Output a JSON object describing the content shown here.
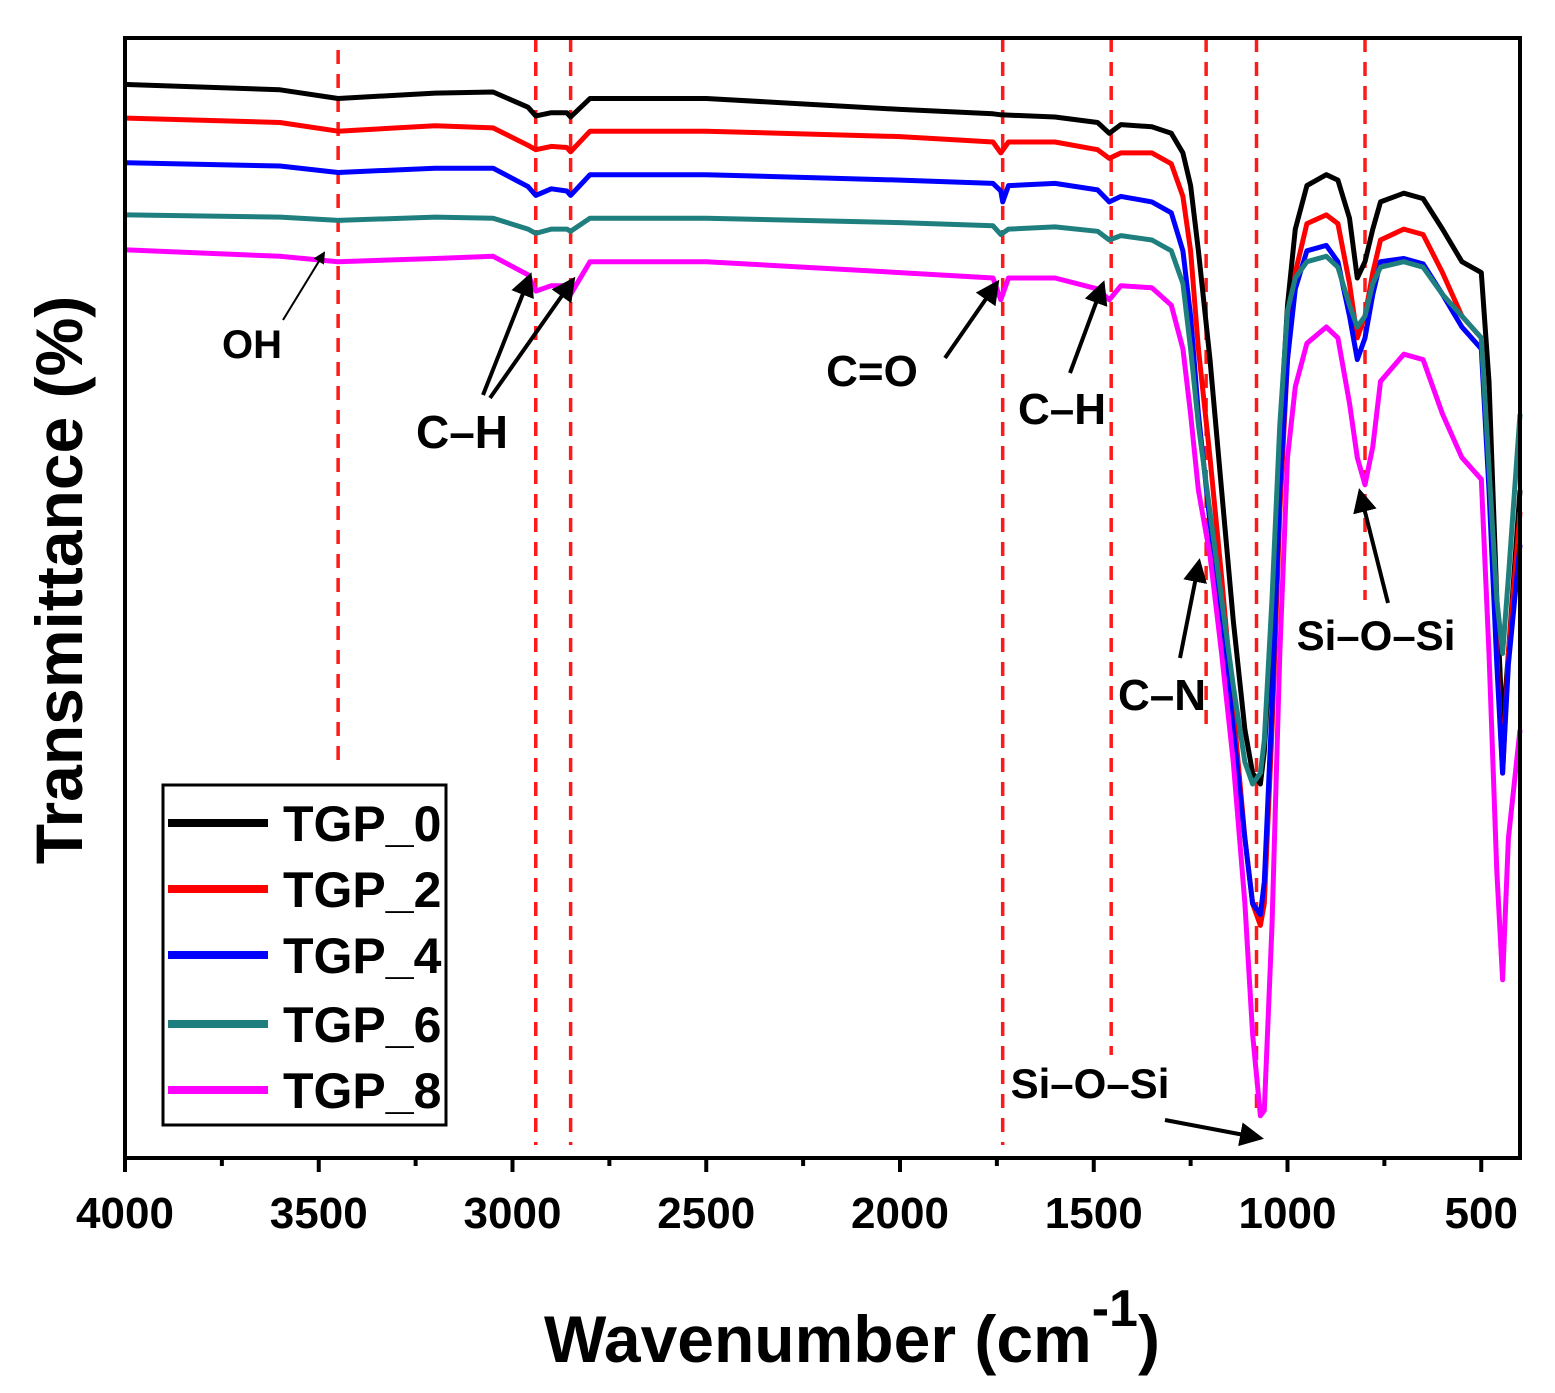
{
  "chart_data": {
    "type": "line",
    "xlabel": "Wavenumber (cm",
    "xlabel_sup": "-1",
    "xlabel_close": ")",
    "ylabel": "Transmittance (%)",
    "xlim": [
      4000,
      400
    ],
    "ylim": [
      0,
      100
    ],
    "xticks": [
      4000,
      3500,
      3000,
      2500,
      2000,
      1500,
      1000,
      500
    ],
    "xtick_labels": [
      "4000",
      "3500",
      "3000",
      "2500",
      "2000",
      "1500",
      "1000",
      "500"
    ],
    "y_tick_labels_shown": false,
    "legend_position": "bottom-left",
    "series": [
      {
        "name": "TGP_0",
        "color": "#000000",
        "points": [
          [
            4000,
            97.3
          ],
          [
            3600,
            96.8
          ],
          [
            3450,
            96.0
          ],
          [
            3200,
            96.5
          ],
          [
            3050,
            96.6
          ],
          [
            2960,
            95.2
          ],
          [
            2940,
            94.4
          ],
          [
            2900,
            94.7
          ],
          [
            2860,
            94.7
          ],
          [
            2850,
            94.3
          ],
          [
            2800,
            96.0
          ],
          [
            2500,
            96.0
          ],
          [
            2000,
            95.0
          ],
          [
            1760,
            94.6
          ],
          [
            1740,
            94.5
          ],
          [
            1600,
            94.3
          ],
          [
            1490,
            93.8
          ],
          [
            1460,
            92.8
          ],
          [
            1430,
            93.6
          ],
          [
            1350,
            93.4
          ],
          [
            1300,
            92.8
          ],
          [
            1270,
            91.0
          ],
          [
            1250,
            88.0
          ],
          [
            1230,
            82.0
          ],
          [
            1200,
            72.0
          ],
          [
            1170,
            60.0
          ],
          [
            1140,
            48.0
          ],
          [
            1110,
            38.0
          ],
          [
            1090,
            34.0
          ],
          [
            1070,
            33.0
          ],
          [
            1060,
            36.0
          ],
          [
            1040,
            48.0
          ],
          [
            1020,
            65.0
          ],
          [
            1000,
            77.0
          ],
          [
            980,
            84.0
          ],
          [
            950,
            88.0
          ],
          [
            900,
            89.0
          ],
          [
            870,
            88.5
          ],
          [
            840,
            85.0
          ],
          [
            820,
            79.5
          ],
          [
            800,
            81.0
          ],
          [
            780,
            84.0
          ],
          [
            760,
            86.5
          ],
          [
            700,
            87.3
          ],
          [
            650,
            86.8
          ],
          [
            600,
            84.0
          ],
          [
            550,
            81.0
          ],
          [
            500,
            80.0
          ],
          [
            480,
            70.0
          ],
          [
            460,
            50.0
          ],
          [
            445,
            38.0
          ],
          [
            430,
            45.0
          ],
          [
            400,
            60.0
          ]
        ]
      },
      {
        "name": "TGP_2",
        "color": "#ff0000",
        "points": [
          [
            4000,
            94.2
          ],
          [
            3600,
            93.8
          ],
          [
            3450,
            93.0
          ],
          [
            3200,
            93.5
          ],
          [
            3050,
            93.3
          ],
          [
            2960,
            91.7
          ],
          [
            2940,
            91.3
          ],
          [
            2900,
            91.6
          ],
          [
            2860,
            91.5
          ],
          [
            2850,
            91.1
          ],
          [
            2800,
            93.0
          ],
          [
            2500,
            93.0
          ],
          [
            2000,
            92.5
          ],
          [
            1760,
            92.0
          ],
          [
            1740,
            91.0
          ],
          [
            1720,
            92.0
          ],
          [
            1600,
            92.0
          ],
          [
            1490,
            91.3
          ],
          [
            1460,
            90.5
          ],
          [
            1430,
            91.0
          ],
          [
            1350,
            91.0
          ],
          [
            1300,
            90.0
          ],
          [
            1270,
            87.0
          ],
          [
            1250,
            82.0
          ],
          [
            1230,
            73.0
          ],
          [
            1200,
            63.0
          ],
          [
            1170,
            52.0
          ],
          [
            1140,
            40.0
          ],
          [
            1110,
            28.0
          ],
          [
            1090,
            22.0
          ],
          [
            1070,
            20.0
          ],
          [
            1060,
            22.0
          ],
          [
            1040,
            38.0
          ],
          [
            1020,
            58.0
          ],
          [
            1000,
            72.0
          ],
          [
            980,
            80.0
          ],
          [
            950,
            84.5
          ],
          [
            900,
            85.3
          ],
          [
            870,
            84.5
          ],
          [
            840,
            79.0
          ],
          [
            820,
            74.0
          ],
          [
            800,
            76.0
          ],
          [
            780,
            80.0
          ],
          [
            760,
            83.0
          ],
          [
            700,
            84.0
          ],
          [
            650,
            83.5
          ],
          [
            600,
            80.0
          ],
          [
            550,
            76.0
          ],
          [
            500,
            74.0
          ],
          [
            480,
            62.0
          ],
          [
            460,
            45.0
          ],
          [
            445,
            34.0
          ],
          [
            430,
            45.0
          ],
          [
            400,
            58.0
          ]
        ]
      },
      {
        "name": "TGP_4",
        "color": "#0000ff",
        "points": [
          [
            4000,
            90.1
          ],
          [
            3600,
            89.8
          ],
          [
            3450,
            89.2
          ],
          [
            3200,
            89.6
          ],
          [
            3050,
            89.6
          ],
          [
            2960,
            87.9
          ],
          [
            2940,
            87.1
          ],
          [
            2900,
            87.7
          ],
          [
            2860,
            87.5
          ],
          [
            2850,
            87.1
          ],
          [
            2800,
            89.0
          ],
          [
            2500,
            89.0
          ],
          [
            2000,
            88.5
          ],
          [
            1760,
            88.2
          ],
          [
            1740,
            87.5
          ],
          [
            1735,
            86.5
          ],
          [
            1720,
            88.0
          ],
          [
            1600,
            88.2
          ],
          [
            1490,
            87.6
          ],
          [
            1460,
            86.5
          ],
          [
            1430,
            87.0
          ],
          [
            1350,
            86.5
          ],
          [
            1300,
            85.5
          ],
          [
            1270,
            82.0
          ],
          [
            1250,
            76.0
          ],
          [
            1230,
            67.0
          ],
          [
            1200,
            57.0
          ],
          [
            1170,
            48.0
          ],
          [
            1140,
            38.0
          ],
          [
            1110,
            28.0
          ],
          [
            1090,
            22.0
          ],
          [
            1070,
            21.0
          ],
          [
            1060,
            24.0
          ],
          [
            1040,
            40.0
          ],
          [
            1020,
            60.0
          ],
          [
            1000,
            72.0
          ],
          [
            980,
            78.5
          ],
          [
            950,
            82.0
          ],
          [
            900,
            82.5
          ],
          [
            870,
            81.0
          ],
          [
            840,
            76.0
          ],
          [
            820,
            72.0
          ],
          [
            800,
            74.0
          ],
          [
            780,
            78.0
          ],
          [
            760,
            81.0
          ],
          [
            700,
            81.3
          ],
          [
            650,
            80.8
          ],
          [
            600,
            78.0
          ],
          [
            550,
            75.0
          ],
          [
            500,
            73.0
          ],
          [
            480,
            60.0
          ],
          [
            460,
            44.0
          ],
          [
            445,
            34.0
          ],
          [
            430,
            44.0
          ],
          [
            400,
            55.0
          ]
        ]
      },
      {
        "name": "TGP_6",
        "color": "#1f7f7f",
        "points": [
          [
            4000,
            85.3
          ],
          [
            3600,
            85.1
          ],
          [
            3450,
            84.8
          ],
          [
            3200,
            85.1
          ],
          [
            3050,
            85.0
          ],
          [
            2960,
            84.0
          ],
          [
            2940,
            83.6
          ],
          [
            2900,
            84.0
          ],
          [
            2860,
            84.0
          ],
          [
            2850,
            83.8
          ],
          [
            2800,
            85.0
          ],
          [
            2500,
            85.0
          ],
          [
            2000,
            84.6
          ],
          [
            1760,
            84.3
          ],
          [
            1740,
            83.5
          ],
          [
            1720,
            84.0
          ],
          [
            1600,
            84.2
          ],
          [
            1490,
            83.8
          ],
          [
            1460,
            83.0
          ],
          [
            1430,
            83.4
          ],
          [
            1350,
            83.0
          ],
          [
            1300,
            82.0
          ],
          [
            1270,
            79.0
          ],
          [
            1250,
            73.0
          ],
          [
            1230,
            66.0
          ],
          [
            1200,
            58.0
          ],
          [
            1170,
            50.0
          ],
          [
            1140,
            42.0
          ],
          [
            1110,
            35.0
          ],
          [
            1090,
            33.0
          ],
          [
            1070,
            34.0
          ],
          [
            1060,
            37.0
          ],
          [
            1040,
            50.0
          ],
          [
            1020,
            66.0
          ],
          [
            1000,
            76.5
          ],
          [
            980,
            79.5
          ],
          [
            950,
            81.0
          ],
          [
            900,
            81.5
          ],
          [
            870,
            80.5
          ],
          [
            840,
            77.0
          ],
          [
            820,
            75.0
          ],
          [
            800,
            76.0
          ],
          [
            780,
            79.0
          ],
          [
            760,
            80.5
          ],
          [
            700,
            81.0
          ],
          [
            650,
            80.5
          ],
          [
            600,
            78.0
          ],
          [
            550,
            76.0
          ],
          [
            500,
            74.0
          ],
          [
            480,
            62.0
          ],
          [
            460,
            50.0
          ],
          [
            445,
            45.0
          ],
          [
            430,
            52.0
          ],
          [
            400,
            67.0
          ]
        ]
      },
      {
        "name": "TGP_8",
        "color": "#ff00ff",
        "points": [
          [
            4000,
            82.1
          ],
          [
            3600,
            81.5
          ],
          [
            3450,
            81.0
          ],
          [
            3200,
            81.3
          ],
          [
            3050,
            81.5
          ],
          [
            2960,
            79.8
          ],
          [
            2940,
            78.3
          ],
          [
            2900,
            78.8
          ],
          [
            2860,
            78.8
          ],
          [
            2850,
            78.0
          ],
          [
            2800,
            81.0
          ],
          [
            2500,
            81.0
          ],
          [
            2000,
            80.0
          ],
          [
            1760,
            79.5
          ],
          [
            1740,
            77.5
          ],
          [
            1720,
            79.5
          ],
          [
            1600,
            79.5
          ],
          [
            1490,
            78.5
          ],
          [
            1460,
            77.5
          ],
          [
            1430,
            78.8
          ],
          [
            1350,
            78.6
          ],
          [
            1300,
            77.0
          ],
          [
            1270,
            73.0
          ],
          [
            1250,
            67.0
          ],
          [
            1230,
            60.0
          ],
          [
            1200,
            54.0
          ],
          [
            1170,
            45.0
          ],
          [
            1140,
            35.0
          ],
          [
            1110,
            22.0
          ],
          [
            1090,
            10.0
          ],
          [
            1070,
            2.5
          ],
          [
            1060,
            3.0
          ],
          [
            1040,
            20.0
          ],
          [
            1020,
            45.0
          ],
          [
            1000,
            63.0
          ],
          [
            980,
            69.5
          ],
          [
            950,
            73.5
          ],
          [
            900,
            75.0
          ],
          [
            870,
            74.0
          ],
          [
            840,
            68.0
          ],
          [
            820,
            63.0
          ],
          [
            800,
            60.5
          ],
          [
            780,
            64.0
          ],
          [
            760,
            70.0
          ],
          [
            700,
            72.5
          ],
          [
            650,
            72.0
          ],
          [
            600,
            67.0
          ],
          [
            550,
            63.0
          ],
          [
            500,
            61.0
          ],
          [
            480,
            45.0
          ],
          [
            460,
            25.0
          ],
          [
            445,
            15.0
          ],
          [
            430,
            28.0
          ],
          [
            400,
            38.0
          ]
        ]
      }
    ],
    "reference_lines": [
      3450,
      2940,
      2850,
      1735,
      1455,
      1210,
      1080,
      800
    ],
    "annotations": [
      {
        "text": "OH",
        "peak": 3450
      },
      {
        "text": "C–H",
        "peak": "2940, 2850"
      },
      {
        "text": "C=O",
        "peak": 1735
      },
      {
        "text": "C–H",
        "peak": 1455
      },
      {
        "text": "C–N",
        "peak": 1210
      },
      {
        "text": "Si–O–Si",
        "peak": 1065
      },
      {
        "text": "Si–O–Si",
        "peak": 800
      }
    ]
  }
}
